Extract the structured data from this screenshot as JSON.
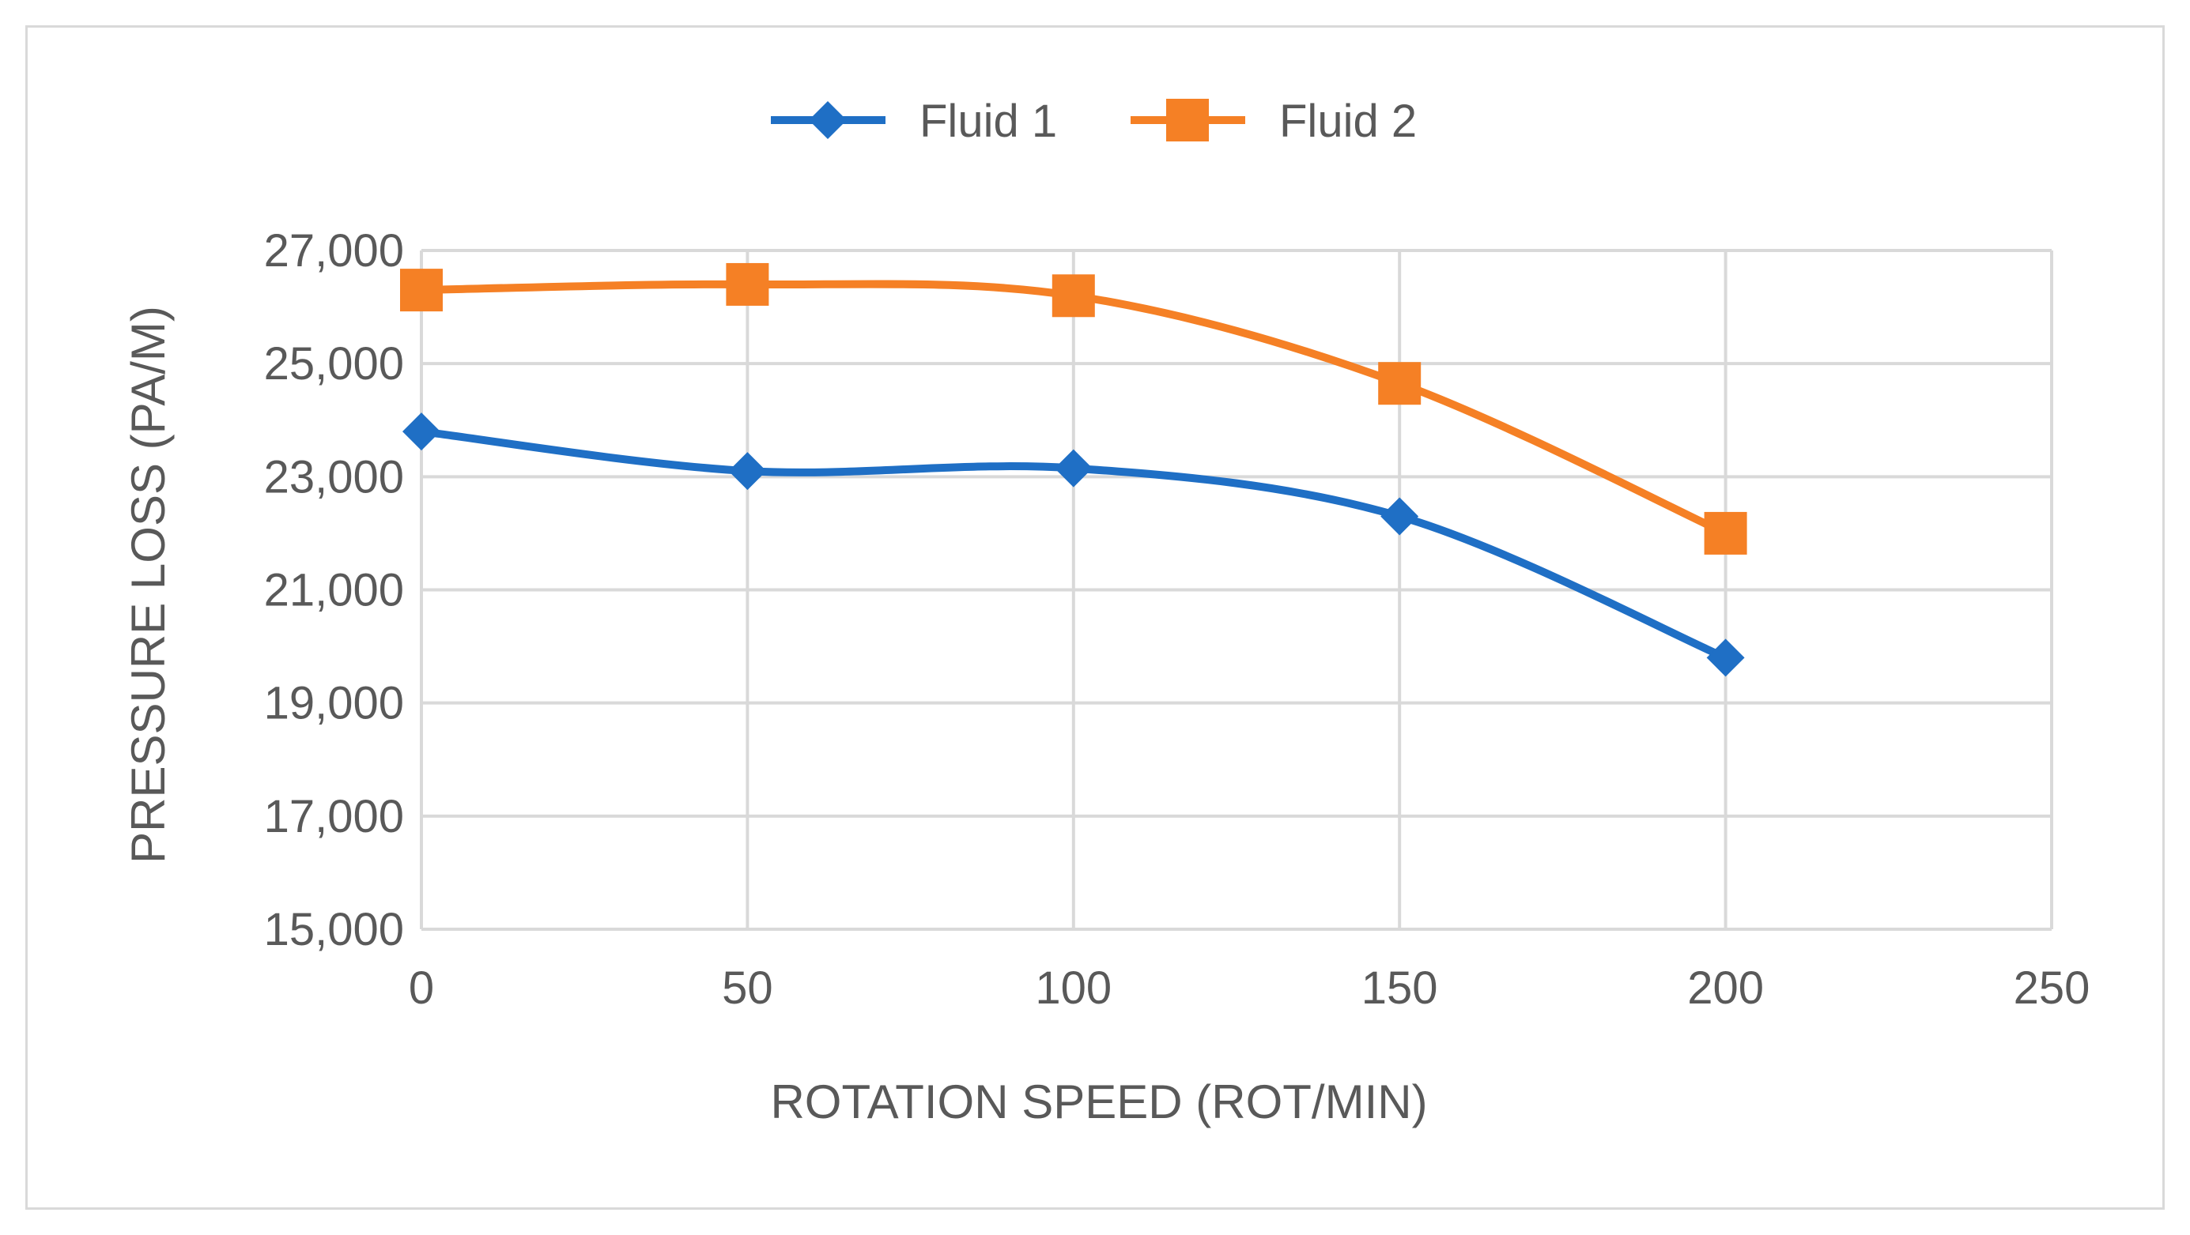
{
  "chart_data": {
    "type": "line",
    "title": "",
    "xlabel": "ROTATION SPEED (ROT/MIN)",
    "ylabel": "PRESSURE LOSS (PA/M)",
    "xlim": [
      0,
      250
    ],
    "ylim": [
      15000,
      27000
    ],
    "x_ticks": [
      0,
      50,
      100,
      150,
      200,
      250
    ],
    "x_tick_labels": [
      "0",
      "50",
      "100",
      "150",
      "200",
      "250"
    ],
    "y_ticks": [
      15000,
      17000,
      19000,
      21000,
      23000,
      25000,
      27000
    ],
    "y_tick_labels": [
      "15,000",
      "17,000",
      "19,000",
      "21,000",
      "23,000",
      "25,000",
      "27,000"
    ],
    "grid": true,
    "legend_position": "top-center",
    "series": [
      {
        "name": "Fluid 1",
        "marker": "diamond",
        "color": "#1f6fc5",
        "x": [
          0,
          50,
          100,
          150,
          200
        ],
        "values": [
          23800,
          23100,
          23150,
          22300,
          19800
        ]
      },
      {
        "name": "Fluid 2",
        "marker": "square",
        "color": "#f58025",
        "x": [
          0,
          50,
          100,
          150,
          200
        ],
        "values": [
          26300,
          26400,
          26200,
          24650,
          22000
        ]
      }
    ]
  }
}
